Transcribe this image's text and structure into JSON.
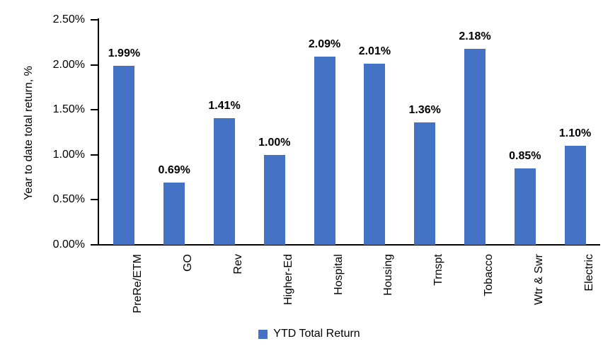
{
  "chart_data": {
    "type": "bar",
    "title": "",
    "xlabel": "",
    "ylabel": "Year to date total return, %",
    "categories": [
      "PreRe/ETM",
      "GO",
      "Rev",
      "Higher-Ed",
      "Hospital",
      "Housing",
      "Trnspt",
      "Tobacco",
      "Wtr & Swr",
      "Electric"
    ],
    "values": [
      1.99,
      0.69,
      1.41,
      1.0,
      2.09,
      2.01,
      1.36,
      2.18,
      0.85,
      1.1
    ],
    "value_labels": [
      "1.99%",
      "0.69%",
      "1.41%",
      "1.00%",
      "2.09%",
      "2.01%",
      "1.36%",
      "2.18%",
      "0.85%",
      "1.10%"
    ],
    "ylim": [
      0,
      2.5
    ],
    "ytick_values": [
      0.0,
      0.5,
      1.0,
      1.5,
      2.0,
      2.5
    ],
    "ytick_labels": [
      "0.00%",
      "0.50%",
      "1.00%",
      "1.50%",
      "2.00%",
      "2.50%"
    ],
    "grid": false,
    "legend_position": "bottom",
    "legend": [
      "YTD Total Return"
    ],
    "bar_color": "#4472C4",
    "axis_color": "#000000",
    "text_color": "#000000"
  }
}
